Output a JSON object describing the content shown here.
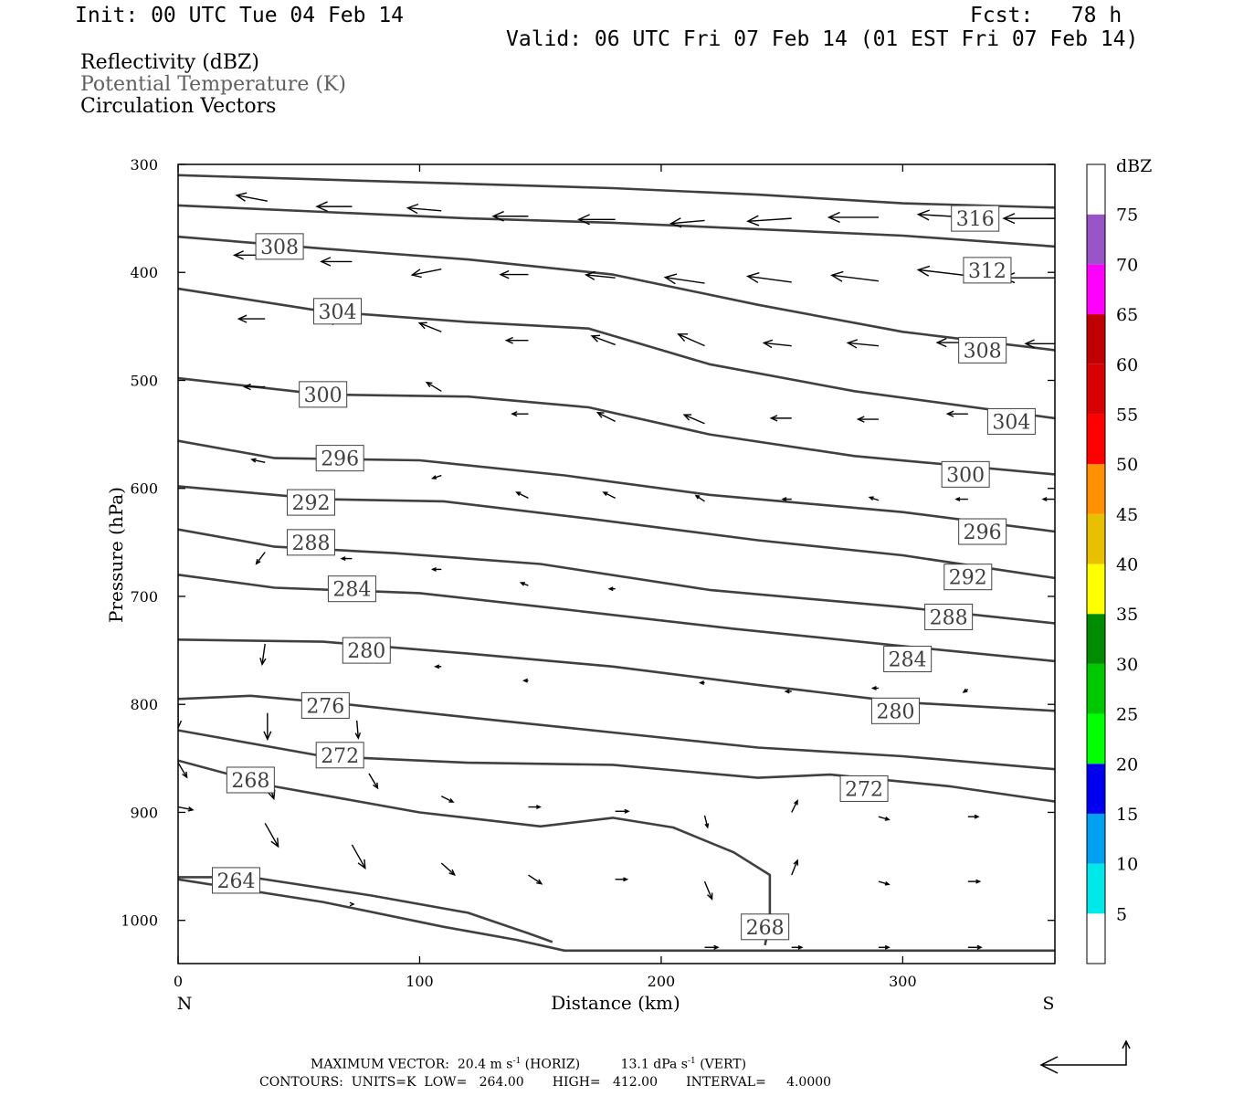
{
  "header": {
    "init": "Init: 00 UTC Tue 04 Feb 14",
    "fcst_label": "Fcst:",
    "fcst_value": "78 h",
    "valid": "Valid: 06 UTC Fri 07 Feb 14 (01 EST Fri 07 Feb 14)"
  },
  "legend": {
    "reflectivity": "Reflectivity (dBZ)",
    "theta": "Potential Temperature (K)",
    "vectors": "Circulation Vectors"
  },
  "footer": {
    "max_vector_label": "MAXIMUM VECTOR:",
    "max_horiz": "20.4 m s",
    "horiz_tag": "(HORIZ)",
    "max_vert": "13.1 dPa s",
    "vert_tag": "(VERT)",
    "contours": "CONTOURS:  UNITS=K  LOW=   264.00       HIGH=   412.00       INTERVAL=     4.0000"
  },
  "colors": {
    "contour": "#404040",
    "theta_text": "#606060"
  },
  "chart_data": {
    "type": "line",
    "xlabel": "Distance (km)",
    "ylabel": "Pressure (hPa)",
    "xlim": [
      0,
      363
    ],
    "ylim": [
      1040,
      300
    ],
    "xticks": [
      0,
      100,
      200,
      300
    ],
    "yticks": [
      300,
      400,
      500,
      600,
      700,
      800,
      900,
      1000
    ],
    "x_end_labels": {
      "left": "N",
      "right": "S"
    },
    "colorbar": {
      "title": "dBZ",
      "ticks": [
        "5",
        "10",
        "15",
        "20",
        "25",
        "30",
        "35",
        "40",
        "45",
        "50",
        "55",
        "60",
        "65",
        "70",
        "75"
      ],
      "colors": [
        "#ffffff",
        "#00e8e8",
        "#00a0f0",
        "#0000f0",
        "#00ff00",
        "#00c800",
        "#008c00",
        "#ffff00",
        "#e8c000",
        "#ff9000",
        "#ff0000",
        "#d80000",
        "#c00000",
        "#ff00ff",
        "#9955c8",
        "#ffffff"
      ]
    },
    "contours": [
      {
        "label": "316",
        "points": [
          [
            0,
            310
          ],
          [
            60,
            314
          ],
          [
            120,
            318
          ],
          [
            180,
            322
          ],
          [
            240,
            328
          ],
          [
            300,
            336
          ],
          [
            363,
            340
          ]
        ]
      },
      {
        "label": "312",
        "points": [
          [
            0,
            338
          ],
          [
            60,
            344
          ],
          [
            120,
            350
          ],
          [
            180,
            354
          ],
          [
            240,
            360
          ],
          [
            300,
            366
          ],
          [
            363,
            376
          ]
        ]
      },
      {
        "label": "308",
        "points": [
          [
            0,
            367
          ],
          [
            60,
            378
          ],
          [
            120,
            388
          ],
          [
            180,
            402
          ],
          [
            240,
            430
          ],
          [
            300,
            455
          ],
          [
            363,
            472
          ]
        ]
      },
      {
        "label": "304",
        "points": [
          [
            0,
            415
          ],
          [
            60,
            436
          ],
          [
            120,
            446
          ],
          [
            170,
            452
          ],
          [
            220,
            485
          ],
          [
            280,
            510
          ],
          [
            363,
            535
          ]
        ]
      },
      {
        "label": "300",
        "points": [
          [
            0,
            498
          ],
          [
            60,
            513
          ],
          [
            120,
            515
          ],
          [
            170,
            525
          ],
          [
            220,
            550
          ],
          [
            280,
            570
          ],
          [
            363,
            587
          ]
        ]
      },
      {
        "label": "296",
        "points": [
          [
            0,
            556
          ],
          [
            40,
            572
          ],
          [
            100,
            574
          ],
          [
            160,
            588
          ],
          [
            220,
            606
          ],
          [
            300,
            622
          ],
          [
            363,
            640
          ]
        ]
      },
      {
        "label": "292",
        "points": [
          [
            0,
            598
          ],
          [
            60,
            610
          ],
          [
            110,
            612
          ],
          [
            170,
            628
          ],
          [
            240,
            648
          ],
          [
            300,
            662
          ],
          [
            363,
            683
          ]
        ]
      },
      {
        "label": "288",
        "points": [
          [
            0,
            638
          ],
          [
            40,
            654
          ],
          [
            90,
            660
          ],
          [
            150,
            670
          ],
          [
            220,
            694
          ],
          [
            300,
            710
          ],
          [
            363,
            725
          ]
        ]
      },
      {
        "label": "284",
        "points": [
          [
            0,
            680
          ],
          [
            40,
            692
          ],
          [
            100,
            697
          ],
          [
            160,
            712
          ],
          [
            230,
            730
          ],
          [
            300,
            746
          ],
          [
            363,
            760
          ]
        ]
      },
      {
        "label": "280",
        "points": [
          [
            0,
            740
          ],
          [
            60,
            742
          ],
          [
            120,
            753
          ],
          [
            180,
            765
          ],
          [
            240,
            782
          ],
          [
            300,
            798
          ],
          [
            363,
            806
          ]
        ]
      },
      {
        "label": "276",
        "points": [
          [
            0,
            795
          ],
          [
            30,
            792
          ],
          [
            70,
            800
          ],
          [
            120,
            812
          ],
          [
            180,
            826
          ],
          [
            240,
            840
          ],
          [
            300,
            848
          ],
          [
            363,
            860
          ]
        ]
      },
      {
        "label": "272",
        "points": [
          [
            0,
            824
          ],
          [
            60,
            848
          ],
          [
            120,
            854
          ],
          [
            180,
            856
          ],
          [
            240,
            868
          ],
          [
            270,
            865
          ],
          [
            320,
            876
          ],
          [
            363,
            890
          ]
        ]
      },
      {
        "label": "268",
        "points": [
          [
            0,
            852
          ],
          [
            40,
            876
          ],
          [
            100,
            900
          ],
          [
            150,
            913
          ],
          [
            180,
            905
          ],
          [
            205,
            914
          ],
          [
            230,
            937
          ],
          [
            245,
            958
          ],
          [
            245,
            1000
          ],
          [
            243,
            1023
          ]
        ]
      },
      {
        "label": "264",
        "points": [
          [
            0,
            960
          ],
          [
            30,
            960
          ],
          [
            80,
            977
          ],
          [
            120,
            993
          ],
          [
            145,
            1012
          ],
          [
            155,
            1020
          ]
        ]
      },
      {
        "label": "",
        "points": [
          [
            0,
            962
          ],
          [
            60,
            983
          ],
          [
            110,
            1006
          ],
          [
            140,
            1018
          ],
          [
            160,
            1028
          ],
          [
            363,
            1028
          ]
        ]
      }
    ],
    "contour_labels": [
      {
        "text": "316",
        "x": 330,
        "p": 350
      },
      {
        "text": "308",
        "x": 42,
        "p": 376
      },
      {
        "text": "312",
        "x": 335,
        "p": 398
      },
      {
        "text": "304",
        "x": 66,
        "p": 436
      },
      {
        "text": "308",
        "x": 333,
        "p": 472
      },
      {
        "text": "300",
        "x": 60,
        "p": 513
      },
      {
        "text": "304",
        "x": 345,
        "p": 538
      },
      {
        "text": "296",
        "x": 67,
        "p": 572
      },
      {
        "text": "300",
        "x": 326,
        "p": 587
      },
      {
        "text": "292",
        "x": 55,
        "p": 613
      },
      {
        "text": "296",
        "x": 333,
        "p": 640
      },
      {
        "text": "288",
        "x": 55,
        "p": 650
      },
      {
        "text": "292",
        "x": 327,
        "p": 682
      },
      {
        "text": "284",
        "x": 72,
        "p": 693
      },
      {
        "text": "288",
        "x": 319,
        "p": 719
      },
      {
        "text": "280",
        "x": 78,
        "p": 750
      },
      {
        "text": "284",
        "x": 302,
        "p": 758
      },
      {
        "text": "276",
        "x": 61,
        "p": 801
      },
      {
        "text": "280",
        "x": 297,
        "p": 806
      },
      {
        "text": "272",
        "x": 67,
        "p": 847
      },
      {
        "text": "268",
        "x": 30,
        "p": 870
      },
      {
        "text": "272",
        "x": 284,
        "p": 878
      },
      {
        "text": "264",
        "x": 24,
        "p": 963
      },
      {
        "text": "268",
        "x": 243,
        "p": 1006
      }
    ],
    "vectors": [
      {
        "x": 37,
        "p": 334,
        "u": -21,
        "w": -2
      },
      {
        "x": 72,
        "p": 339,
        "u": -24,
        "w": 0
      },
      {
        "x": 109,
        "p": 343,
        "u": -23,
        "w": -1
      },
      {
        "x": 145,
        "p": 348,
        "u": -24,
        "w": 0
      },
      {
        "x": 181,
        "p": 351,
        "u": -25,
        "w": 0
      },
      {
        "x": 218,
        "p": 352,
        "u": -23,
        "w": 1
      },
      {
        "x": 254,
        "p": 350,
        "u": -30,
        "w": 1
      },
      {
        "x": 290,
        "p": 349,
        "u": -34,
        "w": 0
      },
      {
        "x": 327,
        "p": 349,
        "u": -34,
        "w": -1
      },
      {
        "x": 363,
        "p": 350,
        "u": -35,
        "w": 0
      },
      {
        "x": 36,
        "p": 384,
        "u": -21,
        "w": 0
      },
      {
        "x": 72,
        "p": 390,
        "u": -21,
        "w": 0
      },
      {
        "x": 109,
        "p": 397,
        "u": -20,
        "w": 2
      },
      {
        "x": 145,
        "p": 402,
        "u": -19,
        "w": 0
      },
      {
        "x": 181,
        "p": 405,
        "u": -20,
        "w": -1
      },
      {
        "x": 218,
        "p": 410,
        "u": -27,
        "w": -2
      },
      {
        "x": 254,
        "p": 409,
        "u": -30,
        "w": -2
      },
      {
        "x": 290,
        "p": 408,
        "u": -32,
        "w": -2
      },
      {
        "x": 327,
        "p": 403,
        "u": -34,
        "w": -2
      },
      {
        "x": 363,
        "p": 405,
        "u": -35,
        "w": 0
      },
      {
        "x": 36,
        "p": 443,
        "u": -18,
        "w": 0
      },
      {
        "x": 72,
        "p": 445,
        "u": -18,
        "w": 0
      },
      {
        "x": 109,
        "p": 455,
        "u": -15,
        "w": -3
      },
      {
        "x": 145,
        "p": 463,
        "u": -15,
        "w": 0
      },
      {
        "x": 181,
        "p": 467,
        "u": -16,
        "w": -3
      },
      {
        "x": 218,
        "p": 468,
        "u": -18,
        "w": -4
      },
      {
        "x": 254,
        "p": 468,
        "u": -19,
        "w": -1
      },
      {
        "x": 290,
        "p": 468,
        "u": -21,
        "w": -1
      },
      {
        "x": 327,
        "p": 465,
        "u": -21,
        "w": 0
      },
      {
        "x": 363,
        "p": 466,
        "u": -20,
        "w": 0
      },
      {
        "x": 36,
        "p": 506,
        "u": -14,
        "w": 0
      },
      {
        "x": 109,
        "p": 510,
        "u": -10,
        "w": -3
      },
      {
        "x": 145,
        "p": 531,
        "u": -11,
        "w": 0
      },
      {
        "x": 181,
        "p": 538,
        "u": -12,
        "w": -3
      },
      {
        "x": 218,
        "p": 540,
        "u": -14,
        "w": -3
      },
      {
        "x": 254,
        "p": 535,
        "u": -14,
        "w": 0
      },
      {
        "x": 290,
        "p": 536,
        "u": -14,
        "w": 0
      },
      {
        "x": 327,
        "p": 531,
        "u": -14,
        "w": 0
      },
      {
        "x": 36,
        "p": 576,
        "u": -9,
        "w": -1
      },
      {
        "x": 72,
        "p": 581,
        "u": -8,
        "w": 0
      },
      {
        "x": 109,
        "p": 588,
        "u": -6,
        "w": 1
      },
      {
        "x": 145,
        "p": 609,
        "u": -8,
        "w": -2
      },
      {
        "x": 181,
        "p": 609,
        "u": -8,
        "w": -2
      },
      {
        "x": 218,
        "p": 612,
        "u": -6,
        "w": -2
      },
      {
        "x": 254,
        "p": 610,
        "u": -6,
        "w": 0
      },
      {
        "x": 290,
        "p": 611,
        "u": -6,
        "w": -1
      },
      {
        "x": 327,
        "p": 610,
        "u": -8,
        "w": 0
      },
      {
        "x": 363,
        "p": 610,
        "u": -8,
        "w": 0
      },
      {
        "x": 36,
        "p": 659,
        "u": -6,
        "w": 4
      },
      {
        "x": 72,
        "p": 665,
        "u": -7,
        "w": 0
      },
      {
        "x": 109,
        "p": 675,
        "u": -6,
        "w": 0
      },
      {
        "x": 145,
        "p": 690,
        "u": -5,
        "w": -1
      },
      {
        "x": 181,
        "p": 693,
        "u": -4,
        "w": 0
      },
      {
        "x": 36,
        "p": 744,
        "u": -2,
        "w": 7
      },
      {
        "x": 72,
        "p": 750,
        "u": -6,
        "w": 4
      },
      {
        "x": 109,
        "p": 765,
        "u": -4,
        "w": 0
      },
      {
        "x": 145,
        "p": 778,
        "u": -3,
        "w": 0
      },
      {
        "x": 218,
        "p": 780,
        "u": -3,
        "w": 0
      },
      {
        "x": 254,
        "p": 788,
        "u": -4,
        "w": 0
      },
      {
        "x": 290,
        "p": 785,
        "u": -4,
        "w": 0
      },
      {
        "x": 327,
        "p": 786,
        "u": -3,
        "w": 1
      },
      {
        "x": 0,
        "p": 800,
        "u": 0,
        "w": 8
      },
      {
        "x": 37,
        "p": 808,
        "u": 0,
        "w": 9
      },
      {
        "x": 74,
        "p": 815,
        "u": 1,
        "w": 6
      },
      {
        "x": 36,
        "p": 863,
        "u": 6,
        "w": 9
      },
      {
        "x": 79,
        "p": 864,
        "u": 6,
        "w": 5
      },
      {
        "x": 0,
        "p": 854,
        "u": 6,
        "w": 5
      },
      {
        "x": 109,
        "p": 885,
        "u": 8,
        "w": 2
      },
      {
        "x": 145,
        "p": 895,
        "u": 8,
        "w": 0
      },
      {
        "x": 181,
        "p": 899,
        "u": 9,
        "w": 0
      },
      {
        "x": 218,
        "p": 903,
        "u": 2,
        "w": 4
      },
      {
        "x": 254,
        "p": 900,
        "u": 4,
        "w": -4
      },
      {
        "x": 290,
        "p": 904,
        "u": 7,
        "w": 1
      },
      {
        "x": 327,
        "p": 904,
        "u": 7,
        "w": 0
      },
      {
        "x": 0,
        "p": 895,
        "u": 10,
        "w": 1
      },
      {
        "x": 36,
        "p": 910,
        "u": 9,
        "w": 8
      },
      {
        "x": 72,
        "p": 930,
        "u": 9,
        "w": 8
      },
      {
        "x": 109,
        "p": 947,
        "u": 9,
        "w": 4
      },
      {
        "x": 145,
        "p": 958,
        "u": 9,
        "w": 3
      },
      {
        "x": 181,
        "p": 962,
        "u": 8,
        "w": 0
      },
      {
        "x": 218,
        "p": 964,
        "u": 5,
        "w": 6
      },
      {
        "x": 254,
        "p": 958,
        "u": 4,
        "w": -5
      },
      {
        "x": 290,
        "p": 964,
        "u": 7,
        "w": 1
      },
      {
        "x": 327,
        "p": 964,
        "u": 8,
        "w": 0
      },
      {
        "x": 72,
        "p": 985,
        "u": 1,
        "w": 0
      },
      {
        "x": 218,
        "p": 1025,
        "u": 9,
        "w": 0
      },
      {
        "x": 254,
        "p": 1025,
        "u": 7,
        "w": 0
      },
      {
        "x": 290,
        "p": 1025,
        "u": 7,
        "w": 0
      },
      {
        "x": 327,
        "p": 1025,
        "u": 9,
        "w": 0
      }
    ]
  }
}
